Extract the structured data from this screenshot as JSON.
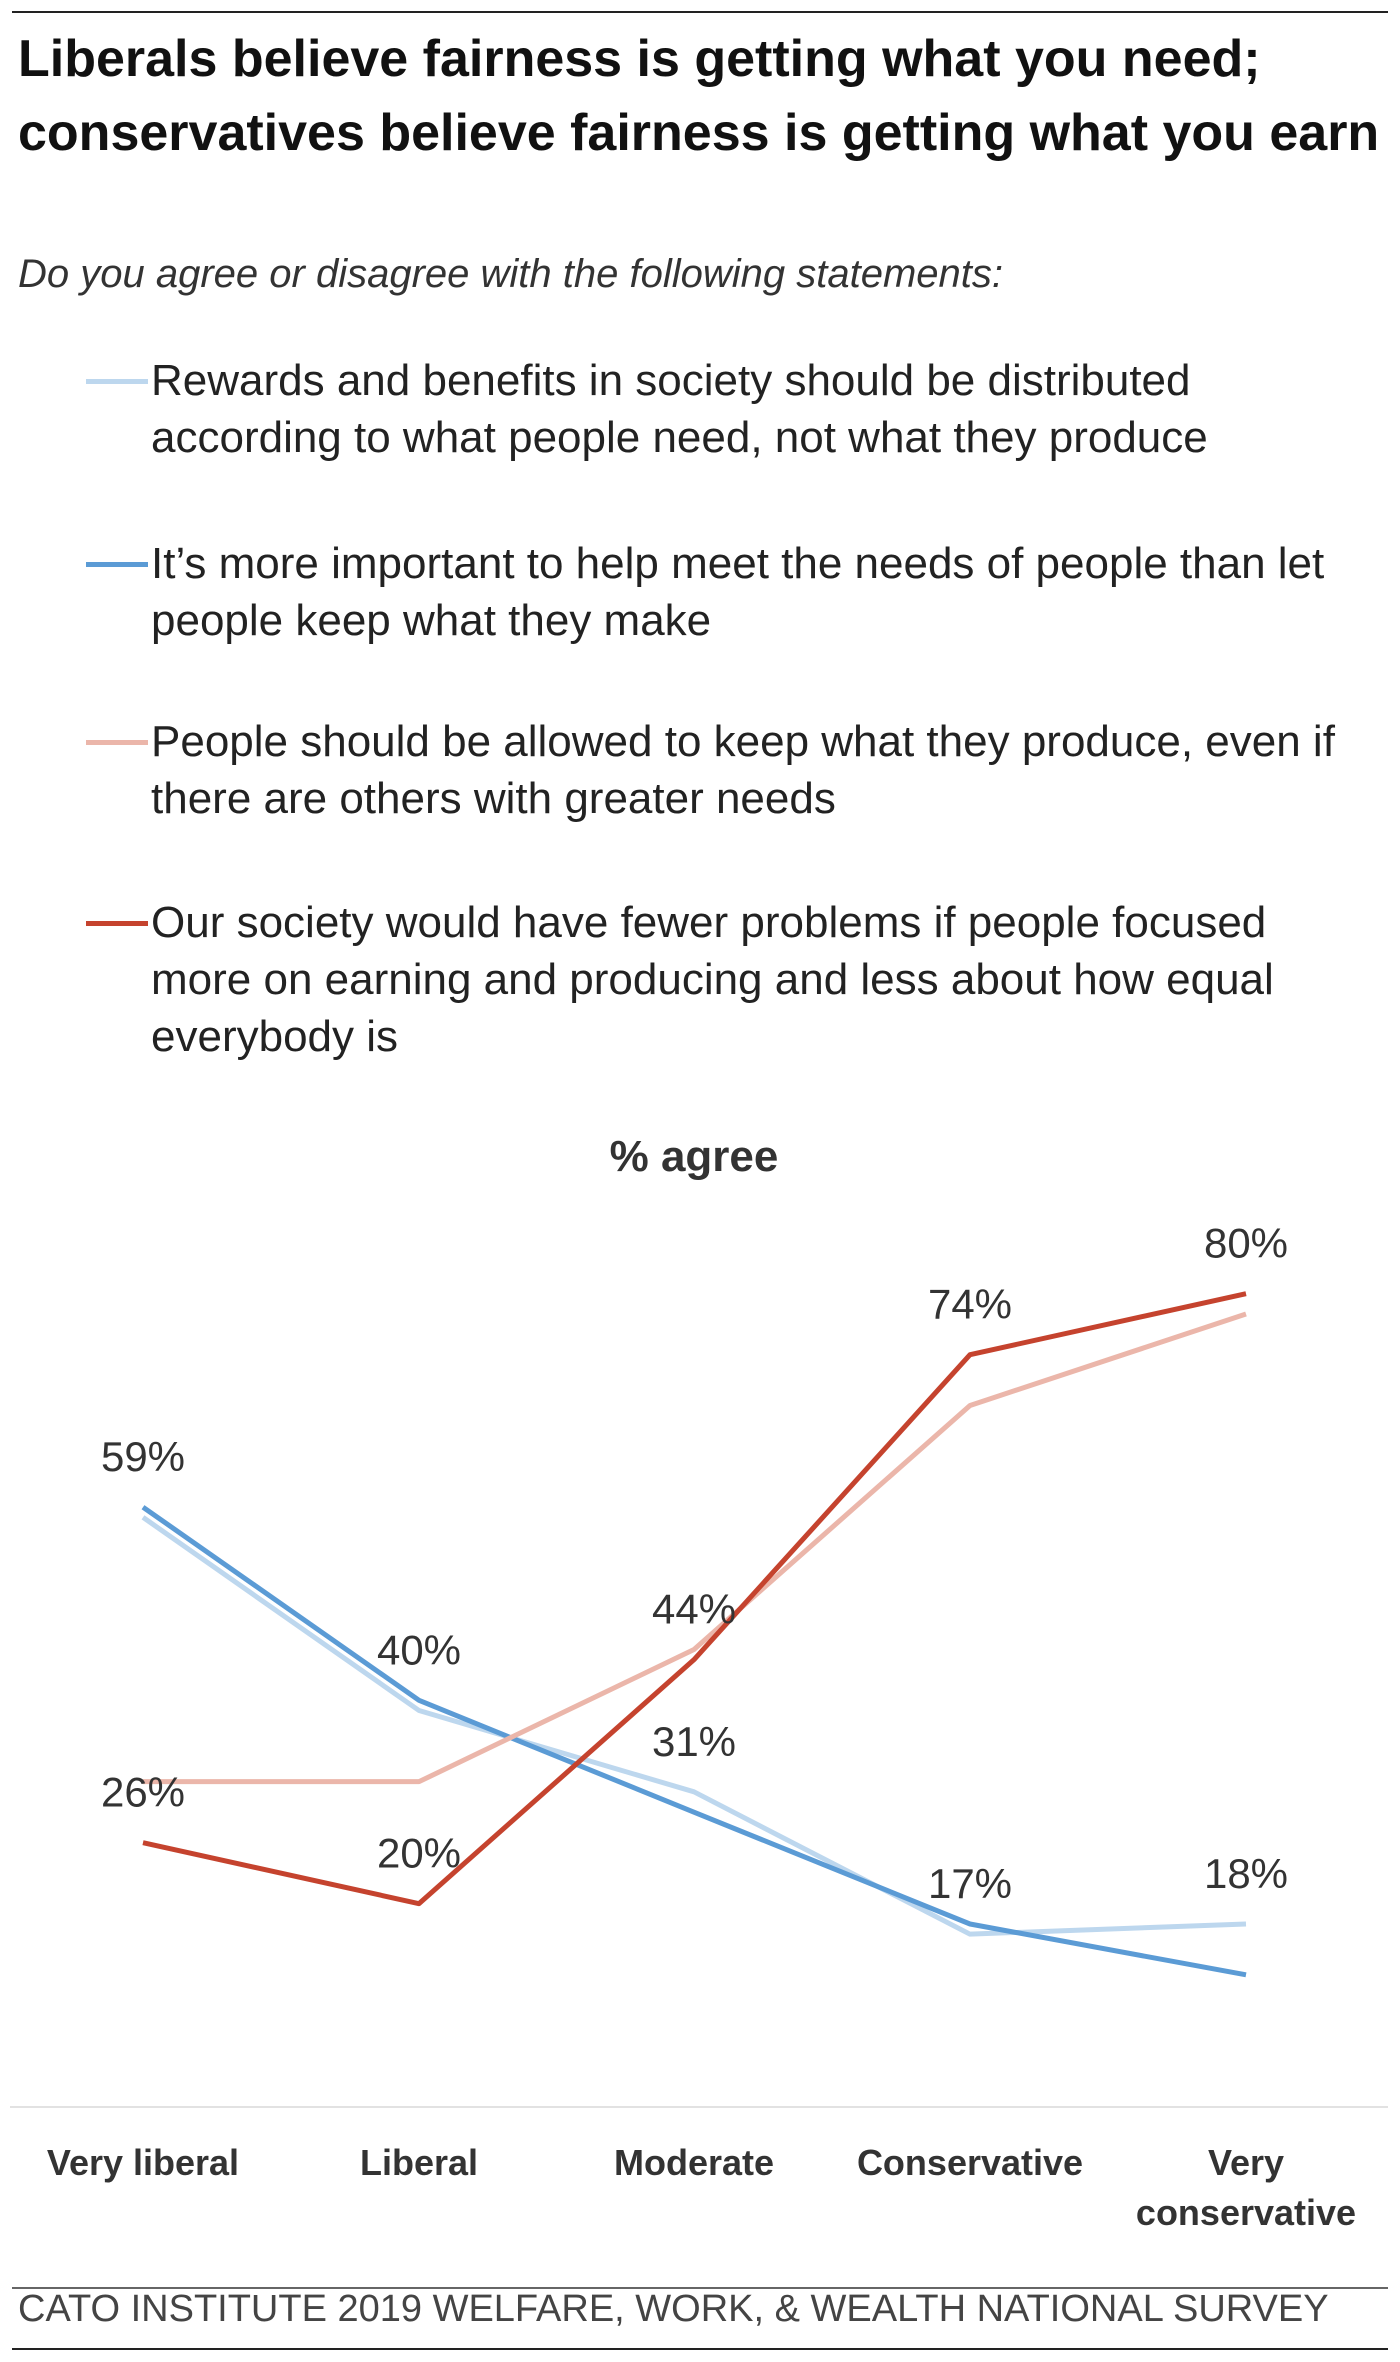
{
  "chart_data": {
    "type": "line",
    "title": "Liberals believe fairness is getting what you need; conservatives believe fairness is getting what you earn",
    "subtitle": "Do you agree or disagree with the following statements:",
    "y_label": "% agree",
    "source": "CATO INSTITUTE 2019 WELFARE, WORK, & WEALTH NATIONAL SURVEY",
    "categories": [
      "Very liberal",
      "Liberal",
      "Moderate",
      "Conservative",
      "Very conservative"
    ],
    "ylim": [
      0,
      90
    ],
    "series": [
      {
        "name": "Rewards and benefits in society should be distributed according to what people need, not what they produce",
        "color": "#bdd7ee",
        "values": [
          58,
          39,
          31,
          17,
          18
        ],
        "value_labels": [
          null,
          null,
          "31%",
          "17%",
          "18%"
        ]
      },
      {
        "name": "It’s more important to help meet the needs of people than let people keep what they make",
        "color": "#5b9bd5",
        "values": [
          59,
          40,
          29,
          18,
          13
        ],
        "value_labels": [
          "59%",
          "40%",
          null,
          null,
          null
        ]
      },
      {
        "name": "People should be allowed to keep what they produce, even if there are others with greater needs",
        "color": "#ebb6aa",
        "values": [
          32,
          32,
          45,
          69,
          78
        ],
        "value_labels": [
          null,
          null,
          null,
          null,
          null
        ]
      },
      {
        "name": "Our society would have fewer problems if people focused more on earning and producing and less about how equal everybody is",
        "color": "#c5432e",
        "values": [
          26,
          20,
          44,
          74,
          80
        ],
        "value_labels": [
          "26%",
          "20%",
          "44%",
          "74%",
          "80%"
        ]
      }
    ]
  }
}
